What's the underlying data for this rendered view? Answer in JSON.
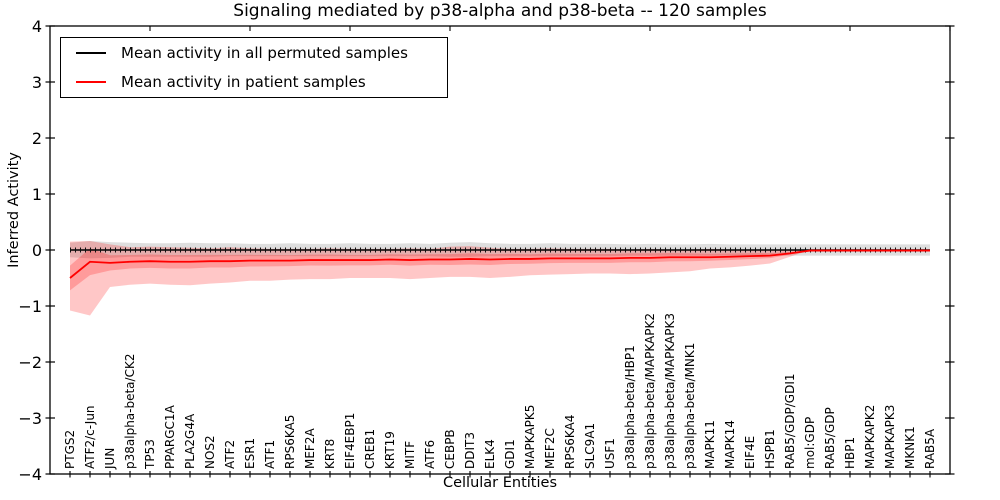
{
  "figure": {
    "title": "Signaling mediated by p38-alpha and p38-beta -- 120 samples",
    "xlabel": "Cellular Entities",
    "ylabel": "Inferred Activity"
  },
  "legend": {
    "entries": [
      {
        "label": "Mean activity in all permuted samples",
        "color": "#000000"
      },
      {
        "label": "Mean activity in patient samples",
        "color": "#ff0000"
      }
    ]
  },
  "chart_data": {
    "type": "line",
    "title": "Signaling mediated by p38-alpha and p38-beta -- 120 samples",
    "xlabel": "Cellular Entities",
    "ylabel": "Inferred Activity",
    "ylim": [
      -4,
      4
    ],
    "yticks": [
      4,
      3,
      2,
      1,
      0,
      -1,
      -2,
      -3,
      -4
    ],
    "grid": false,
    "legend_position": "upper left",
    "categories": [
      "PTGS2",
      "ATF2/c-Jun",
      "JUN",
      "p38alpha-beta/CK2",
      "TP53",
      "PPARGC1A",
      "PLA2G4A",
      "NOS2",
      "ATF2",
      "ESR1",
      "ATF1",
      "RPS6KA5",
      "MEF2A",
      "KRT8",
      "EIF4EBP1",
      "CREB1",
      "KRT19",
      "MITF",
      "ATF6",
      "CEBPB",
      "DDIT3",
      "ELK4",
      "GDI1",
      "MAPKAPK5",
      "MEF2C",
      "RPS6KA4",
      "SLC9A1",
      "USF1",
      "p38alpha-beta/HBP1",
      "p38alpha-beta/MAPKAPK2",
      "p38alpha-beta/MAPKAPK3",
      "p38alpha-beta/MNK1",
      "MAPK11",
      "MAPK14",
      "EIF4E",
      "HSPB1",
      "RAB5/GDP/GDI1",
      "mol:GDP",
      "RAB5/GDP",
      "HBP1",
      "MAPKAPK2",
      "MAPKAPK3",
      "MKNK1",
      "RAB5A"
    ],
    "series": [
      {
        "name": "Mean activity in all permuted samples",
        "color": "#000000",
        "style": "solid-with-tick-markers",
        "values": [
          0,
          0,
          0,
          0,
          0,
          0,
          0,
          0,
          0,
          0,
          0,
          0,
          0,
          0,
          0,
          0,
          0,
          0,
          0,
          0,
          0,
          0,
          0,
          0,
          0,
          0,
          0,
          0,
          0,
          0,
          0,
          0,
          0,
          0,
          0,
          0,
          0,
          0,
          0,
          0,
          0,
          0,
          0,
          0
        ]
      },
      {
        "name": "Mean activity in patient samples",
        "color": "#ff0000",
        "style": "solid",
        "values": [
          -0.5,
          -0.21,
          -0.23,
          -0.21,
          -0.2,
          -0.21,
          -0.21,
          -0.2,
          -0.2,
          -0.19,
          -0.19,
          -0.19,
          -0.18,
          -0.18,
          -0.18,
          -0.18,
          -0.17,
          -0.18,
          -0.17,
          -0.17,
          -0.16,
          -0.17,
          -0.16,
          -0.16,
          -0.15,
          -0.15,
          -0.15,
          -0.15,
          -0.14,
          -0.14,
          -0.13,
          -0.13,
          -0.13,
          -0.12,
          -0.11,
          -0.1,
          -0.06,
          -0.01,
          -0.01,
          -0.01,
          -0.01,
          -0.01,
          -0.01,
          -0.01
        ]
      }
    ],
    "bands": [
      {
        "name": "permuted-samples-range",
        "color": "rgba(0,0,0,0.13)",
        "hi": [
          0.13,
          0.16,
          0.14,
          0.13,
          0.12,
          0.12,
          0.13,
          0.12,
          0.12,
          0.11,
          0.11,
          0.12,
          0.11,
          0.11,
          0.12,
          0.11,
          0.11,
          0.12,
          0.11,
          0.13,
          0.14,
          0.12,
          0.11,
          0.11,
          0.12,
          0.11,
          0.11,
          0.11,
          0.1,
          0.11,
          0.1,
          0.1,
          0.11,
          0.1,
          0.1,
          0.1,
          0.1,
          0.1,
          0.1,
          0.1,
          0.1,
          0.1,
          0.1,
          0.1
        ],
        "lo": [
          -0.13,
          -0.15,
          -0.14,
          -0.12,
          -0.12,
          -0.12,
          -0.12,
          -0.12,
          -0.11,
          -0.11,
          -0.11,
          -0.11,
          -0.11,
          -0.11,
          -0.11,
          -0.11,
          -0.11,
          -0.11,
          -0.11,
          -0.12,
          -0.12,
          -0.11,
          -0.11,
          -0.11,
          -0.11,
          -0.11,
          -0.11,
          -0.11,
          -0.1,
          -0.1,
          -0.1,
          -0.1,
          -0.1,
          -0.1,
          -0.1,
          -0.1,
          -0.1,
          -0.1,
          -0.1,
          -0.1,
          -0.1,
          -0.1,
          -0.1,
          -0.1
        ]
      },
      {
        "name": "patient-samples-range",
        "color": "rgba(255,0,0,0.22)",
        "hi": [
          0.15,
          0.16,
          0.1,
          0.05,
          0.06,
          0.05,
          0.04,
          0.03,
          0.05,
          0.03,
          0.02,
          0.02,
          0.02,
          0.03,
          0.02,
          0.02,
          0.02,
          0.03,
          0.02,
          0.06,
          0.07,
          0.04,
          0.02,
          0.02,
          0.03,
          0.02,
          0.02,
          0.02,
          0.01,
          0.02,
          0.01,
          0.01,
          0.02,
          0.01,
          0.01,
          0.01,
          0.0,
          0.0,
          0.0,
          0.0,
          0.0,
          0.0,
          0.0,
          0.0
        ],
        "lo": [
          -1.08,
          -1.17,
          -0.66,
          -0.62,
          -0.6,
          -0.62,
          -0.63,
          -0.6,
          -0.58,
          -0.55,
          -0.55,
          -0.53,
          -0.52,
          -0.52,
          -0.5,
          -0.5,
          -0.5,
          -0.52,
          -0.5,
          -0.48,
          -0.48,
          -0.5,
          -0.48,
          -0.45,
          -0.44,
          -0.43,
          -0.42,
          -0.42,
          -0.43,
          -0.42,
          -0.4,
          -0.38,
          -0.33,
          -0.31,
          -0.28,
          -0.24,
          -0.12,
          0.0,
          -0.01,
          -0.01,
          -0.01,
          -0.01,
          -0.01,
          -0.01
        ]
      }
    ]
  }
}
